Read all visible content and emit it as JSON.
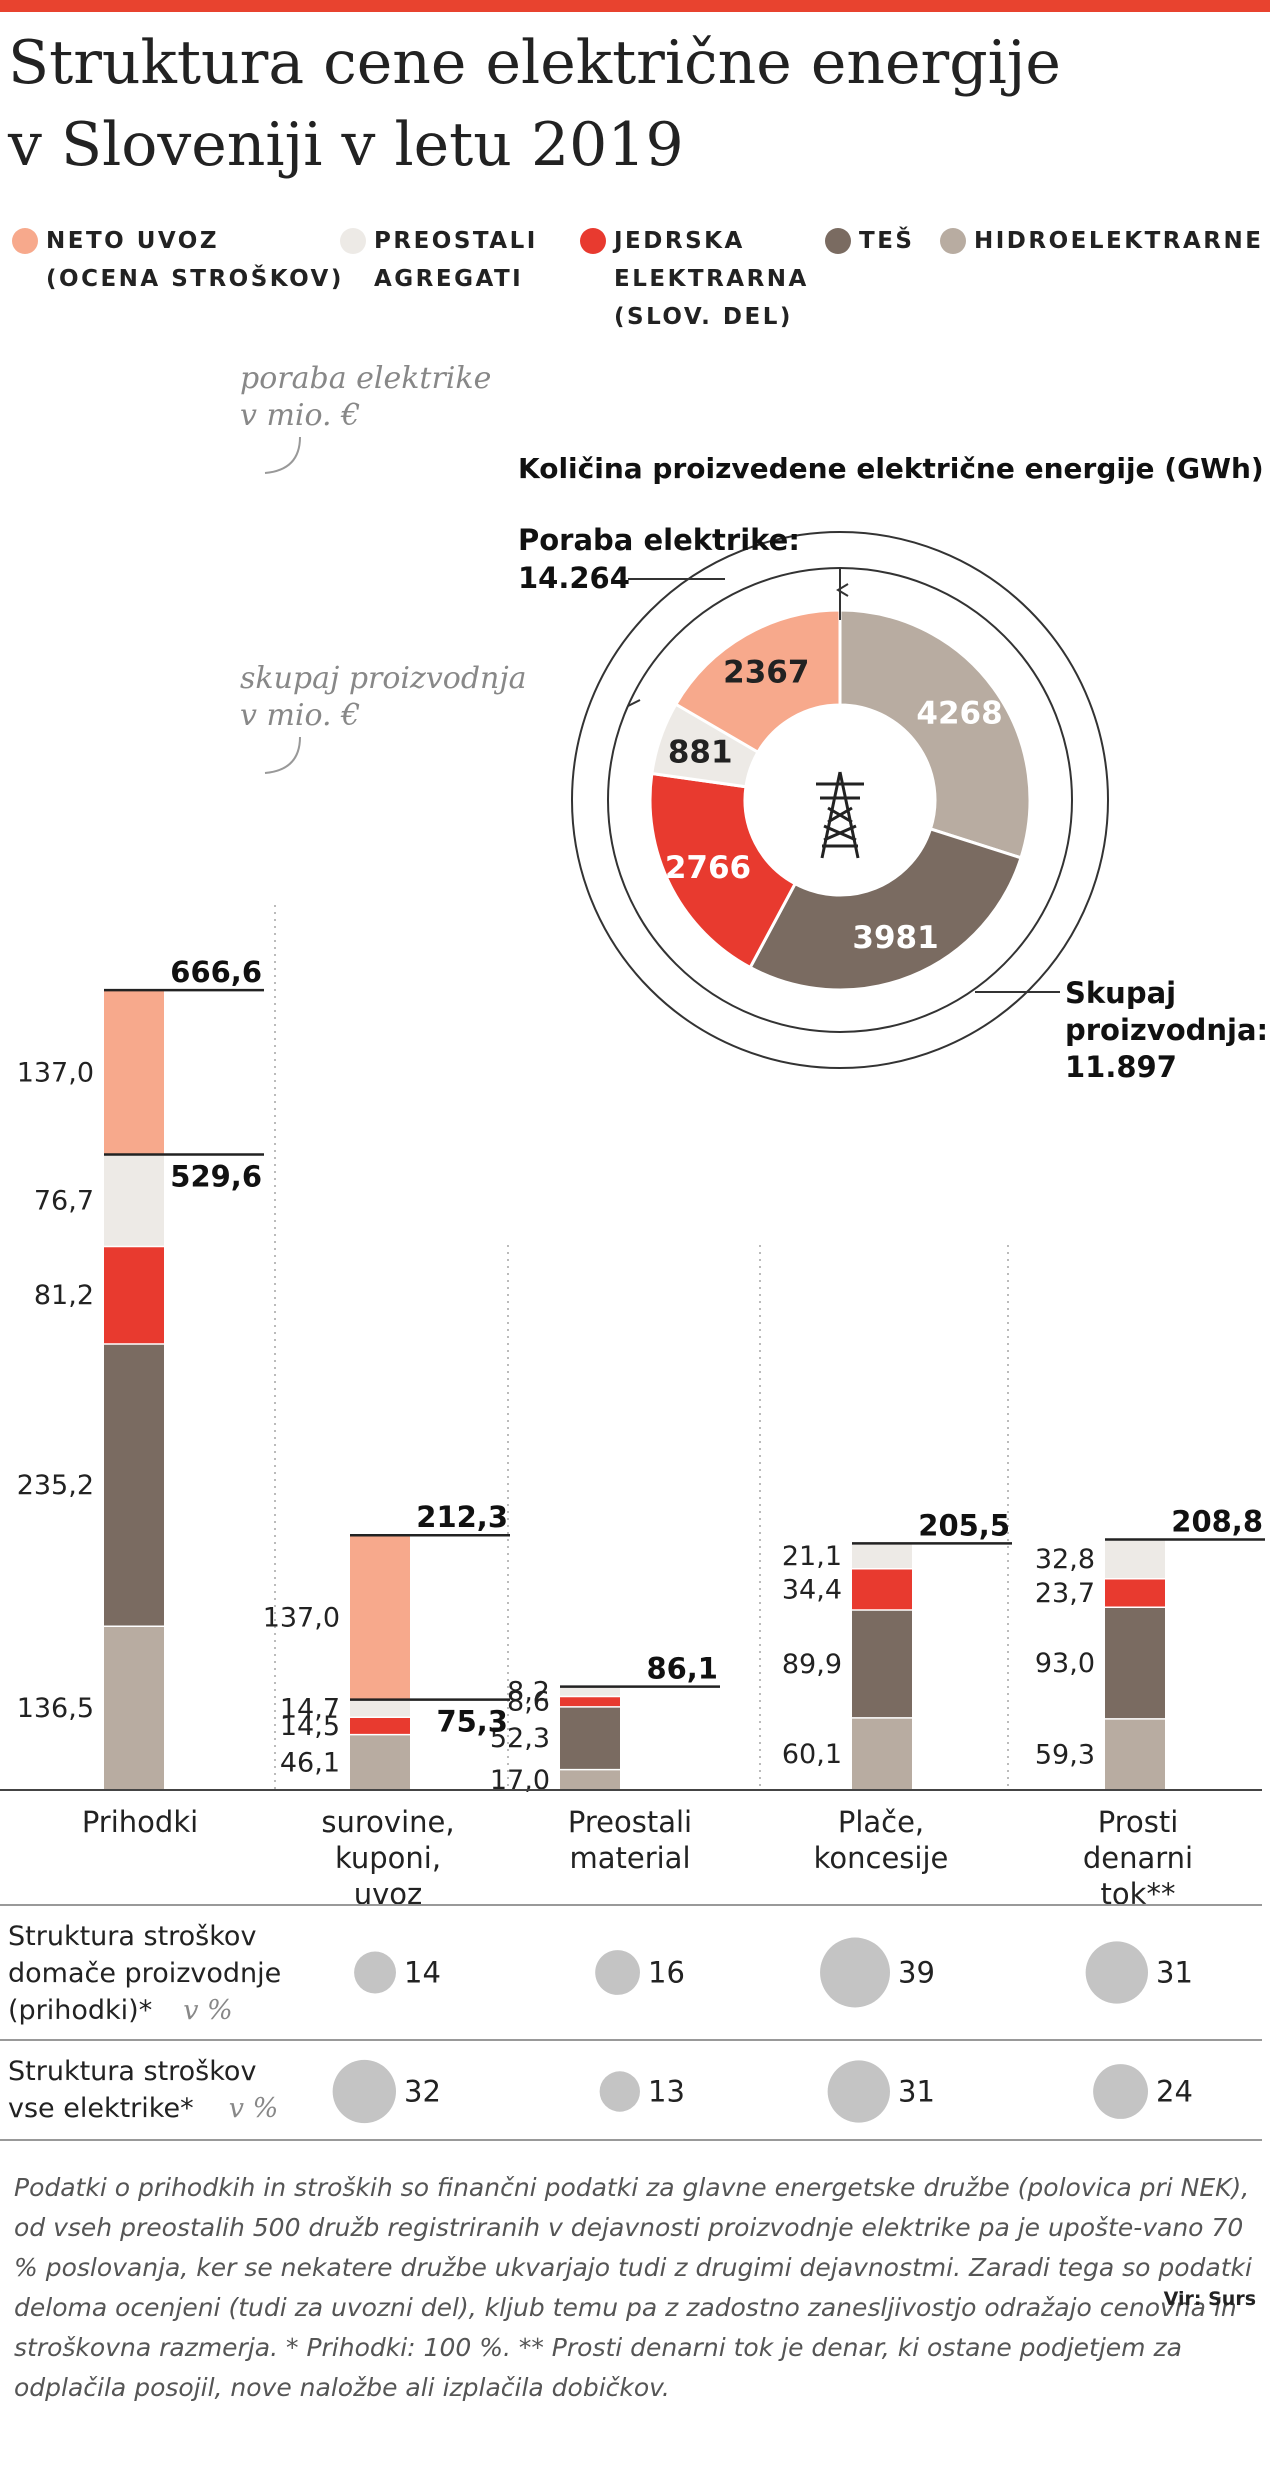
{
  "title_line1": "Struktura cene električne energije",
  "title_line2": "v Sloveniji v letu 2019",
  "colors": {
    "top_bar": "#e8432f",
    "neto_uvoz": "#f7a98c",
    "preostali_agregati": "#edeae6",
    "jedrska": "#e83a2f",
    "tes": "#7a6b61",
    "hidro": "#b8aca1",
    "bubble": "#c4c4c4"
  },
  "legend": [
    {
      "key": "neto_uvoz",
      "label": "NETO UVOZ\n(OCENA STROŠKOV)"
    },
    {
      "key": "preostali_agregati",
      "label": "PREOSTALI\nAGREGATI"
    },
    {
      "key": "jedrska",
      "label": "JEDRSKA\nELEKTRARNA\n(SLOV. DEL)"
    },
    {
      "key": "tes",
      "label": "TEŠ"
    },
    {
      "key": "hidro",
      "label": "HIDROELEKTRARNE"
    }
  ],
  "chart_data": [
    {
      "type": "bar",
      "stacked": true,
      "categories": [
        "Prihodki",
        "surovine, kuponi, uvoz",
        "Preostali material",
        "Plače, koncesije",
        "Prosti denarni tok**"
      ],
      "series": [
        {
          "key": "hidro",
          "values": [
            136.5,
            46.1,
            17.0,
            60.1,
            59.3
          ]
        },
        {
          "key": "tes",
          "values": [
            235.2,
            0,
            52.3,
            89.9,
            93.0
          ]
        },
        {
          "key": "jedrska",
          "values": [
            81.2,
            14.5,
            8.6,
            34.4,
            23.7
          ]
        },
        {
          "key": "preostali_agregati",
          "values": [
            76.7,
            14.7,
            8.2,
            21.1,
            32.8
          ]
        },
        {
          "key": "neto_uvoz",
          "values": [
            137.0,
            137.0,
            0,
            0,
            0
          ]
        }
      ],
      "totals": [
        "666,6",
        "212,3",
        "86,1",
        "205,5",
        "208,8"
      ],
      "value_labels": [
        [
          "136,5",
          "235,2",
          "81,2",
          "76,7",
          "137,0"
        ],
        [
          "46,1",
          "",
          "14,5",
          "14,7",
          "137,0"
        ],
        [
          "17,0",
          "52,3",
          "8,6",
          "8,2",
          ""
        ],
        [
          "60,1",
          "89,9",
          "34,4",
          "21,1",
          ""
        ],
        [
          "59,3",
          "93,0",
          "23,7",
          "32,8",
          ""
        ]
      ],
      "subtotals": [
        {
          "bar": 0,
          "value": 529.6,
          "label": "529,6"
        },
        {
          "bar": 1,
          "value": 75.3,
          "label": "75,3"
        }
      ],
      "annotations": {
        "poraba_line1": "poraba elektrike",
        "poraba_line2": "v mio. €",
        "skupaj_line1": "skupaj proizvodnja",
        "skupaj_line2": "v mio. €"
      }
    },
    {
      "type": "pie",
      "donut": true,
      "title": "Količina proizvedene električne energije (GWh)",
      "slices": [
        {
          "key": "hidro",
          "value": 4268,
          "label": "4268"
        },
        {
          "key": "tes",
          "value": 3981,
          "label": "3981"
        },
        {
          "key": "jedrska",
          "value": 2766,
          "label": "2766"
        },
        {
          "key": "preostali_agregati",
          "value": 881,
          "label": "881"
        },
        {
          "key": "neto_uvoz",
          "value": 2367,
          "label": "2367"
        }
      ],
      "poraba_label": "Poraba elektrike:",
      "poraba_value": "14.264",
      "skupaj_label_1": "Skupaj",
      "skupaj_label_2": "proizvodnja:",
      "skupaj_value": "11.897"
    }
  ],
  "table": {
    "rows": [
      {
        "label_lines": [
          "Struktura stroškov",
          "domače proizvodnje",
          "(prihodki)*"
        ],
        "unit": "v %",
        "values": [
          14,
          16,
          39,
          31
        ]
      },
      {
        "label_lines": [
          "Struktura stroškov",
          "vse elektrike*"
        ],
        "unit": "v %",
        "values": [
          32,
          13,
          31,
          24
        ]
      }
    ]
  },
  "category_label_lines": [
    [
      "Prihodki"
    ],
    [
      "surovine,",
      "kuponi,",
      "uvoz"
    ],
    [
      "Preostali",
      "material"
    ],
    [
      "Plače,",
      "koncesije"
    ],
    [
      "Prosti",
      "denarni",
      "tok**"
    ]
  ],
  "note": "Podatki o prihodkih in stroških so finančni podatki za glavne energetske družbe (polovica pri NEK), od vseh preostalih 500 družb registriranih v dejavnosti proizvodnje elektrike pa je upošte-vano 70 % poslovanja, ker se nekatere družbe ukvarjajo tudi z drugimi dejavnostmi. Zaradi tega so podatki deloma ocenjeni (tudi za uvozni del), kljub temu pa z zadostno zanesljivostjo odražajo cenovna in stroškovna razmerja. * Prihodki: 100 %. ** Prosti denarni tok je denar, ki ostane podjetjem za odplačila posojil, nove naložbe ali izplačila dobičkov.",
  "source": "Vir: Surs"
}
